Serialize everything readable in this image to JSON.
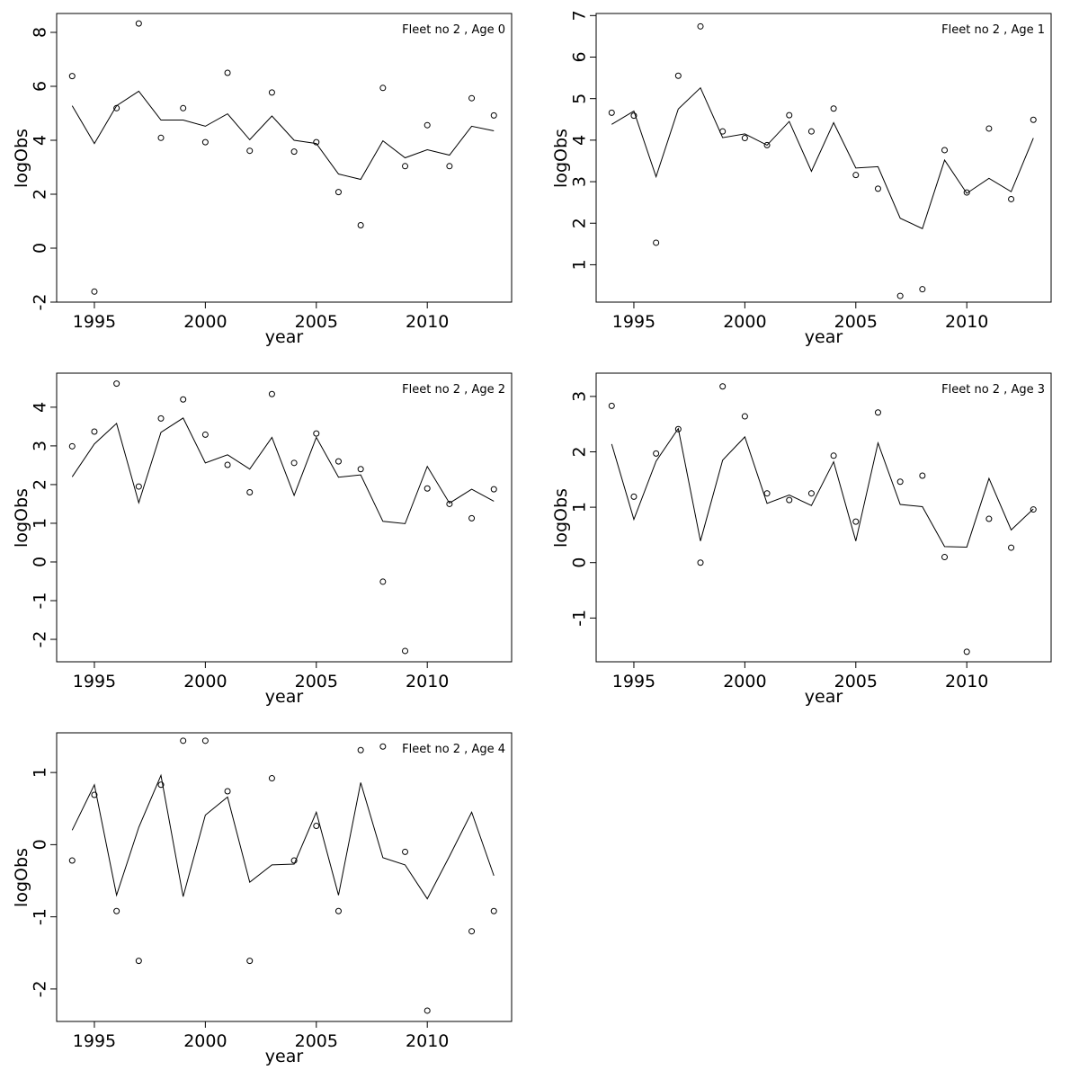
{
  "chart_data": [
    {
      "type": "scatter",
      "panel_label": "Fleet no 2 , Age 0",
      "xlabel": "year",
      "ylabel": "logObs",
      "xlim": [
        1993.3,
        2013.8
      ],
      "ylim": [
        -2.0,
        8.7
      ],
      "x_ticks": [
        1995,
        2000,
        2005,
        2010
      ],
      "y_ticks": [
        -2,
        0,
        2,
        4,
        6,
        8
      ],
      "x": [
        1994,
        1995,
        1996,
        1997,
        1998,
        1999,
        2000,
        2001,
        2002,
        2003,
        2004,
        2005,
        2006,
        2007,
        2008,
        2009,
        2010,
        2011,
        2012,
        2013
      ],
      "series": [
        {
          "style": "points",
          "values": [
            6.38,
            -1.61,
            5.19,
            8.33,
            4.09,
            5.19,
            3.93,
            6.5,
            3.61,
            5.77,
            3.58,
            3.93,
            2.08,
            0.85,
            5.94,
            3.04,
            4.56,
            3.04,
            5.56,
            4.92
          ]
        },
        {
          "style": "line",
          "values": [
            5.28,
            3.88,
            5.28,
            5.82,
            4.75,
            4.75,
            4.52,
            4.98,
            4.02,
            4.9,
            4.0,
            3.88,
            2.75,
            2.55,
            3.98,
            3.35,
            3.65,
            3.45,
            4.52,
            4.35
          ]
        }
      ]
    },
    {
      "type": "scatter",
      "panel_label": "Fleet no 2 , Age 1",
      "xlabel": "year",
      "ylabel": "logObs",
      "xlim": [
        1993.3,
        2013.8
      ],
      "ylim": [
        0.1,
        7.05
      ],
      "x_ticks": [
        1995,
        2000,
        2005,
        2010
      ],
      "y_ticks": [
        1,
        2,
        3,
        4,
        5,
        6,
        7
      ],
      "x": [
        1994,
        1995,
        1996,
        1997,
        1998,
        1999,
        2000,
        2001,
        2002,
        2003,
        2004,
        2005,
        2006,
        2007,
        2008,
        2009,
        2010,
        2011,
        2012,
        2013
      ],
      "series": [
        {
          "style": "points",
          "values": [
            4.66,
            4.59,
            1.53,
            5.55,
            6.74,
            4.21,
            4.05,
            3.88,
            4.6,
            4.21,
            4.76,
            3.16,
            2.83,
            0.25,
            0.41,
            3.76,
            2.74,
            4.28,
            2.58,
            4.49
          ]
        },
        {
          "style": "line",
          "values": [
            4.38,
            4.7,
            3.12,
            4.75,
            5.26,
            4.06,
            4.15,
            3.88,
            4.45,
            3.25,
            4.42,
            3.33,
            3.36,
            2.12,
            1.87,
            3.52,
            2.72,
            3.08,
            2.76,
            4.05
          ]
        }
      ]
    },
    {
      "type": "scatter",
      "panel_label": "Fleet no 2 , Age 2",
      "xlabel": "year",
      "ylabel": "logObs",
      "xlim": [
        1993.3,
        2013.8
      ],
      "ylim": [
        -2.58,
        4.88
      ],
      "x_ticks": [
        1995,
        2000,
        2005,
        2010
      ],
      "y_ticks": [
        -2,
        -1,
        0,
        1,
        2,
        3,
        4
      ],
      "x": [
        1994,
        1995,
        1996,
        1997,
        1998,
        1999,
        2000,
        2001,
        2002,
        2003,
        2004,
        2005,
        2006,
        2007,
        2008,
        2009,
        2010,
        2011,
        2012,
        2013
      ],
      "series": [
        {
          "style": "points",
          "values": [
            2.99,
            3.37,
            4.61,
            1.95,
            3.71,
            4.2,
            3.29,
            2.51,
            1.8,
            4.34,
            2.56,
            3.32,
            2.6,
            2.4,
            -0.51,
            -2.3,
            1.9,
            1.5,
            1.13,
            1.88
          ]
        },
        {
          "style": "line",
          "values": [
            2.2,
            3.05,
            3.58,
            1.53,
            3.35,
            3.72,
            2.56,
            2.77,
            2.4,
            3.22,
            1.72,
            3.22,
            2.19,
            2.25,
            1.05,
            0.99,
            2.47,
            1.52,
            1.88,
            1.57
          ]
        }
      ]
    },
    {
      "type": "scatter",
      "panel_label": "Fleet no 2 , Age 3",
      "xlabel": "year",
      "ylabel": "logObs",
      "xlim": [
        1993.3,
        2013.8
      ],
      "ylim": [
        -1.79,
        3.42
      ],
      "x_ticks": [
        1995,
        2000,
        2005,
        2010
      ],
      "y_ticks": [
        -1,
        0,
        1,
        2,
        3
      ],
      "x": [
        1994,
        1995,
        1996,
        1997,
        1998,
        1999,
        2000,
        2001,
        2002,
        2003,
        2004,
        2005,
        2006,
        2007,
        2008,
        2009,
        2010,
        2011,
        2012,
        2013
      ],
      "series": [
        {
          "style": "points",
          "values": [
            2.83,
            1.19,
            1.97,
            2.41,
            0.0,
            3.18,
            2.64,
            1.25,
            1.13,
            1.25,
            1.93,
            0.74,
            2.71,
            1.46,
            1.57,
            0.1,
            -1.61,
            0.79,
            0.27,
            0.96
          ]
        },
        {
          "style": "line",
          "values": [
            2.14,
            0.78,
            1.83,
            2.42,
            0.39,
            1.85,
            2.27,
            1.07,
            1.22,
            1.03,
            1.82,
            0.39,
            2.16,
            1.05,
            1.01,
            0.29,
            0.28,
            1.52,
            0.59,
            0.97
          ]
        }
      ]
    },
    {
      "type": "scatter",
      "panel_label": "Fleet no 2 , Age 4",
      "xlabel": "year",
      "ylabel": "logObs",
      "xlim": [
        1993.3,
        2013.8
      ],
      "ylim": [
        -2.45,
        1.55
      ],
      "x_ticks": [
        1995,
        2000,
        2005,
        2010
      ],
      "y_ticks": [
        -2,
        -1,
        0,
        1
      ],
      "x": [
        1994,
        1995,
        1996,
        1997,
        1998,
        1999,
        2000,
        2001,
        2002,
        2003,
        2004,
        2005,
        2006,
        2007,
        2008,
        2009,
        2010,
        2011,
        2012,
        2013
      ],
      "series": [
        {
          "style": "points",
          "values": [
            -0.22,
            0.69,
            -0.92,
            -1.61,
            0.83,
            1.44,
            1.44,
            0.74,
            -1.61,
            0.92,
            -0.22,
            0.26,
            -0.92,
            1.31,
            1.36,
            -0.1,
            -2.3,
            null,
            -1.2,
            -0.92
          ]
        },
        {
          "style": "line",
          "values": [
            0.2,
            0.83,
            -0.7,
            0.24,
            0.96,
            -0.72,
            0.41,
            0.66,
            -0.52,
            -0.28,
            -0.27,
            0.45,
            -0.7,
            0.86,
            -0.18,
            -0.28,
            -0.75,
            -0.16,
            0.45,
            -0.43
          ]
        }
      ]
    }
  ]
}
